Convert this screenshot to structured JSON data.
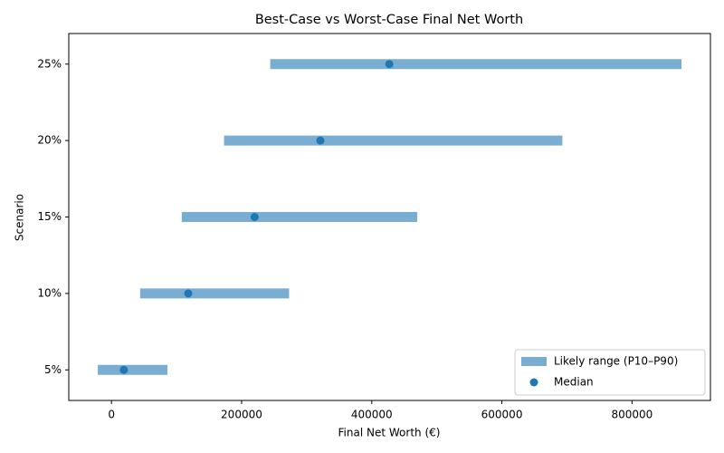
{
  "chart_data": {
    "type": "range",
    "title": "Best-Case vs Worst-Case Final Net Worth",
    "x_label": "Final Net Worth (€)",
    "y_label": "Scenario",
    "categories": [
      "5%",
      "10%",
      "15%",
      "20%",
      "25%"
    ],
    "series": [
      {
        "name": "Likely range (P10–P90)",
        "color": "#1f77b4",
        "opacity": 0.6,
        "low": [
          -21000,
          44000,
          108000,
          173000,
          244000
        ],
        "high": [
          86000,
          273000,
          470000,
          693000,
          876000
        ]
      },
      {
        "name": "Median",
        "color": "#1f77b4",
        "values": [
          19000,
          118000,
          220000,
          321000,
          427000
        ]
      }
    ],
    "xlim": [
      -65600,
      920500
    ],
    "xticks": [
      0,
      200000,
      400000,
      600000,
      800000
    ],
    "legend": "lower right"
  }
}
